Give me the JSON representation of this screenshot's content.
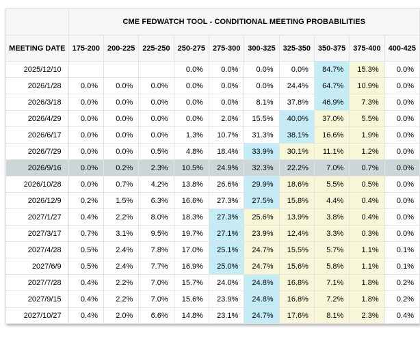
{
  "title": "CME FEDWATCH TOOL - CONDITIONAL MEETING PROBABILITIES",
  "columns": {
    "date_label": "MEETING DATE",
    "ranges": [
      "175-200",
      "200-225",
      "225-250",
      "250-275",
      "275-300",
      "300-325",
      "325-350",
      "350-375",
      "375-400",
      "400-425"
    ]
  },
  "colors": {
    "max_cell_highlight": "#c3ecf6",
    "tail_cell_highlight": "#f7f7d8",
    "selected_row": "#ccd6d9",
    "header_bg": "#f7f7f7",
    "border": "#e2e2e2"
  },
  "rows": [
    {
      "date": "2025/12/10",
      "values": [
        "",
        "",
        "",
        "0.0%",
        "0.0%",
        "0.0%",
        "0.0%",
        "84.7%",
        "15.3%",
        "0.0%"
      ],
      "max_col": 7,
      "tail_cols": [
        8
      ],
      "selected": false
    },
    {
      "date": "2026/1/28",
      "values": [
        "0.0%",
        "0.0%",
        "0.0%",
        "0.0%",
        "0.0%",
        "0.0%",
        "24.4%",
        "64.7%",
        "10.9%",
        "0.0%"
      ],
      "max_col": 7,
      "tail_cols": [
        8
      ],
      "selected": false
    },
    {
      "date": "2026/3/18",
      "values": [
        "0.0%",
        "0.0%",
        "0.0%",
        "0.0%",
        "0.0%",
        "8.1%",
        "37.8%",
        "46.9%",
        "7.3%",
        "0.0%"
      ],
      "max_col": 7,
      "tail_cols": [
        8
      ],
      "selected": false
    },
    {
      "date": "2026/4/29",
      "values": [
        "0.0%",
        "0.0%",
        "0.0%",
        "0.0%",
        "2.0%",
        "15.5%",
        "40.0%",
        "37.0%",
        "5.5%",
        "0.0%"
      ],
      "max_col": 6,
      "tail_cols": [
        7,
        8
      ],
      "selected": false
    },
    {
      "date": "2026/6/17",
      "values": [
        "0.0%",
        "0.0%",
        "0.0%",
        "1.3%",
        "10.7%",
        "31.3%",
        "38.1%",
        "16.6%",
        "1.9%",
        "0.0%"
      ],
      "max_col": 6,
      "tail_cols": [
        7,
        8
      ],
      "selected": false
    },
    {
      "date": "2026/7/29",
      "values": [
        "0.0%",
        "0.0%",
        "0.5%",
        "4.8%",
        "18.4%",
        "33.9%",
        "30.1%",
        "11.1%",
        "1.2%",
        "0.0%"
      ],
      "max_col": 5,
      "tail_cols": [
        6,
        7,
        8
      ],
      "selected": false
    },
    {
      "date": "2026/9/16",
      "values": [
        "0.0%",
        "0.2%",
        "2.3%",
        "10.5%",
        "24.9%",
        "32.3%",
        "22.2%",
        "7.0%",
        "0.7%",
        "0.0%"
      ],
      "max_col": null,
      "tail_cols": [],
      "selected": true
    },
    {
      "date": "2026/10/28",
      "values": [
        "0.0%",
        "0.7%",
        "4.2%",
        "13.8%",
        "26.6%",
        "29.9%",
        "18.6%",
        "5.5%",
        "0.5%",
        "0.0%"
      ],
      "max_col": 5,
      "tail_cols": [
        6,
        7,
        8
      ],
      "selected": false
    },
    {
      "date": "2026/12/9",
      "values": [
        "0.2%",
        "1.5%",
        "6.3%",
        "16.6%",
        "27.3%",
        "27.5%",
        "15.8%",
        "4.4%",
        "0.4%",
        "0.0%"
      ],
      "max_col": 5,
      "tail_cols": [
        6,
        7,
        8
      ],
      "selected": false
    },
    {
      "date": "2027/1/27",
      "values": [
        "0.4%",
        "2.2%",
        "8.0%",
        "18.3%",
        "27.3%",
        "25.6%",
        "13.9%",
        "3.8%",
        "0.4%",
        "0.0%"
      ],
      "max_col": 4,
      "tail_cols": [
        5,
        6,
        7,
        8
      ],
      "selected": false
    },
    {
      "date": "2027/3/17",
      "values": [
        "0.7%",
        "3.1%",
        "9.5%",
        "19.7%",
        "27.1%",
        "23.9%",
        "12.4%",
        "3.3%",
        "0.3%",
        "0.0%"
      ],
      "max_col": 4,
      "tail_cols": [
        5,
        6,
        7,
        8
      ],
      "selected": false
    },
    {
      "date": "2027/4/28",
      "values": [
        "0.5%",
        "2.4%",
        "7.8%",
        "17.0%",
        "25.1%",
        "24.7%",
        "15.5%",
        "5.7%",
        "1.1%",
        "0.1%"
      ],
      "max_col": 4,
      "tail_cols": [
        5,
        6,
        7,
        8
      ],
      "selected": false
    },
    {
      "date": "2027/6/9",
      "values": [
        "0.5%",
        "2.4%",
        "7.7%",
        "16.9%",
        "25.0%",
        "24.7%",
        "15.6%",
        "5.8%",
        "1.1%",
        "0.1%"
      ],
      "max_col": 4,
      "tail_cols": [
        5,
        6,
        7,
        8
      ],
      "selected": false
    },
    {
      "date": "2027/7/28",
      "values": [
        "0.4%",
        "2.2%",
        "7.0%",
        "15.7%",
        "24.0%",
        "24.8%",
        "16.8%",
        "7.1%",
        "1.8%",
        "0.2%"
      ],
      "max_col": 5,
      "tail_cols": [
        6,
        7,
        8
      ],
      "selected": false
    },
    {
      "date": "2027/9/15",
      "values": [
        "0.4%",
        "2.2%",
        "7.0%",
        "15.6%",
        "23.9%",
        "24.8%",
        "16.8%",
        "7.2%",
        "1.8%",
        "0.2%"
      ],
      "max_col": 5,
      "tail_cols": [
        6,
        7,
        8
      ],
      "selected": false
    },
    {
      "date": "2027/10/27",
      "values": [
        "0.4%",
        "2.0%",
        "6.6%",
        "14.8%",
        "23.1%",
        "24.7%",
        "17.6%",
        "8.1%",
        "2.3%",
        "0.4%"
      ],
      "max_col": 5,
      "tail_cols": [
        6,
        7,
        8
      ],
      "selected": false
    }
  ]
}
